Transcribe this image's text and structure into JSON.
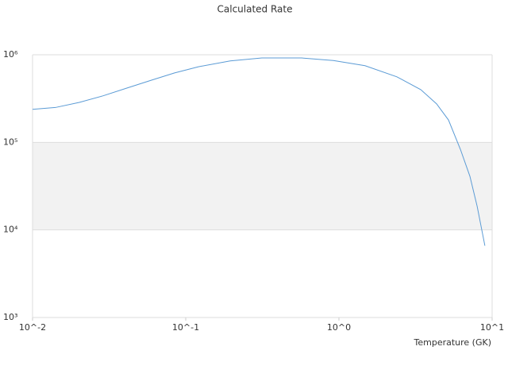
{
  "chart_data": {
    "type": "line",
    "title": "Calculated Rate",
    "x_label": "Temperature (GK)",
    "x": [
      0.01,
      0.0141,
      0.0202,
      0.0289,
      0.0414,
      0.0592,
      0.0845,
      0.121,
      0.195,
      0.314,
      0.57,
      0.92,
      1.48,
      2.39,
      3.42,
      4.34,
      5.19,
      6.21,
      7.16,
      7.98,
      8.97
    ],
    "series": [
      {
        "color": "#5b9bd5",
        "values": [
          238000,
          250000,
          286000,
          340000,
          417000,
          510000,
          620000,
          730000,
          850000,
          920000,
          920000,
          860000,
          750000,
          560000,
          400000,
          275000,
          180000,
          83000,
          41000,
          18700,
          6600
        ]
      }
    ],
    "xlim": [
      0.01,
      10
    ],
    "ylim": [
      1000,
      1000000
    ],
    "xticks": [
      {
        "value": 0.01,
        "label": "10^-2"
      },
      {
        "value": 0.1,
        "label": "10^-1"
      },
      {
        "value": 1,
        "label": "10^0"
      },
      {
        "value": 10,
        "label": "10^1"
      }
    ],
    "yticks": [
      {
        "value": 1000,
        "label": "10³"
      },
      {
        "value": 10000,
        "label": "10⁴"
      },
      {
        "value": 100000,
        "label": "10⁵"
      },
      {
        "value": 1000000,
        "label": "10⁶"
      }
    ],
    "x_log": true,
    "y_log": true,
    "grid": true,
    "alternate_bands": true
  }
}
